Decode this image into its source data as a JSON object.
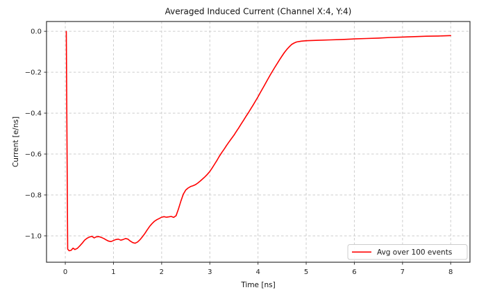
{
  "figure": {
    "title": "Averaged Induced Current (Channel X:4, Y:4)",
    "xlabel": "Time [ns]",
    "ylabel": "Current [e/ns]"
  },
  "legend": {
    "label": "Avg over 100 events",
    "position": "lower right"
  },
  "colors": {
    "line": "#ff0000",
    "grid": "#cdcdcd",
    "spine": "#333333",
    "text": "#111111",
    "legend_border": "#cccccc",
    "background": "#ffffff"
  },
  "chart_data": {
    "type": "line",
    "title": "Averaged Induced Current (Channel X:4, Y:4)",
    "xlabel": "Time [ns]",
    "ylabel": "Current [e/ns]",
    "xlim": [
      -0.39,
      8.4
    ],
    "ylim": [
      -1.129,
      0.048
    ],
    "xticks": [
      0,
      1,
      2,
      3,
      4,
      5,
      6,
      7,
      8
    ],
    "yticks": [
      0.0,
      -0.2,
      -0.4,
      -0.6,
      -0.8,
      -1.0
    ],
    "grid": "dashed",
    "legend_position": "lower right",
    "series": [
      {
        "name": "Avg over 100 events",
        "color": "#ff0000",
        "points": [
          [
            0.02,
            0.0
          ],
          [
            0.05,
            -1.065
          ],
          [
            0.08,
            -1.073
          ],
          [
            0.12,
            -1.071
          ],
          [
            0.16,
            -1.06
          ],
          [
            0.2,
            -1.067
          ],
          [
            0.25,
            -1.061
          ],
          [
            0.3,
            -1.049
          ],
          [
            0.35,
            -1.036
          ],
          [
            0.4,
            -1.021
          ],
          [
            0.45,
            -1.012
          ],
          [
            0.5,
            -1.006
          ],
          [
            0.55,
            -1.002
          ],
          [
            0.6,
            -1.01
          ],
          [
            0.64,
            -1.005
          ],
          [
            0.7,
            -1.004
          ],
          [
            0.75,
            -1.008
          ],
          [
            0.8,
            -1.013
          ],
          [
            0.85,
            -1.02
          ],
          [
            0.9,
            -1.026
          ],
          [
            0.95,
            -1.028
          ],
          [
            1.0,
            -1.023
          ],
          [
            1.05,
            -1.018
          ],
          [
            1.1,
            -1.016
          ],
          [
            1.15,
            -1.021
          ],
          [
            1.2,
            -1.018
          ],
          [
            1.25,
            -1.013
          ],
          [
            1.3,
            -1.016
          ],
          [
            1.35,
            -1.026
          ],
          [
            1.4,
            -1.033
          ],
          [
            1.45,
            -1.036
          ],
          [
            1.5,
            -1.03
          ],
          [
            1.55,
            -1.019
          ],
          [
            1.6,
            -1.005
          ],
          [
            1.65,
            -0.989
          ],
          [
            1.7,
            -0.971
          ],
          [
            1.75,
            -0.954
          ],
          [
            1.8,
            -0.94
          ],
          [
            1.85,
            -0.929
          ],
          [
            1.9,
            -0.921
          ],
          [
            1.95,
            -0.915
          ],
          [
            2.0,
            -0.909
          ],
          [
            2.05,
            -0.906
          ],
          [
            2.1,
            -0.909
          ],
          [
            2.15,
            -0.907
          ],
          [
            2.2,
            -0.905
          ],
          [
            2.25,
            -0.91
          ],
          [
            2.3,
            -0.901
          ],
          [
            2.35,
            -0.868
          ],
          [
            2.4,
            -0.83
          ],
          [
            2.45,
            -0.796
          ],
          [
            2.5,
            -0.776
          ],
          [
            2.55,
            -0.766
          ],
          [
            2.6,
            -0.759
          ],
          [
            2.65,
            -0.755
          ],
          [
            2.7,
            -0.75
          ],
          [
            2.75,
            -0.742
          ],
          [
            2.8,
            -0.732
          ],
          [
            2.85,
            -0.722
          ],
          [
            2.9,
            -0.711
          ],
          [
            2.95,
            -0.699
          ],
          [
            3.0,
            -0.685
          ],
          [
            3.05,
            -0.668
          ],
          [
            3.1,
            -0.649
          ],
          [
            3.15,
            -0.63
          ],
          [
            3.2,
            -0.61
          ],
          [
            3.25,
            -0.592
          ],
          [
            3.3,
            -0.575
          ],
          [
            3.35,
            -0.557
          ],
          [
            3.4,
            -0.54
          ],
          [
            3.45,
            -0.524
          ],
          [
            3.5,
            -0.508
          ],
          [
            3.55,
            -0.49
          ],
          [
            3.6,
            -0.472
          ],
          [
            3.65,
            -0.453
          ],
          [
            3.7,
            -0.435
          ],
          [
            3.75,
            -0.416
          ],
          [
            3.8,
            -0.398
          ],
          [
            3.85,
            -0.379
          ],
          [
            3.9,
            -0.36
          ],
          [
            3.95,
            -0.34
          ],
          [
            4.0,
            -0.32
          ],
          [
            4.05,
            -0.299
          ],
          [
            4.1,
            -0.278
          ],
          [
            4.15,
            -0.257
          ],
          [
            4.2,
            -0.236
          ],
          [
            4.25,
            -0.215
          ],
          [
            4.3,
            -0.195
          ],
          [
            4.35,
            -0.176
          ],
          [
            4.4,
            -0.157
          ],
          [
            4.45,
            -0.138
          ],
          [
            4.5,
            -0.12
          ],
          [
            4.55,
            -0.103
          ],
          [
            4.6,
            -0.088
          ],
          [
            4.65,
            -0.075
          ],
          [
            4.7,
            -0.064
          ],
          [
            4.75,
            -0.057
          ],
          [
            4.8,
            -0.052
          ],
          [
            4.9,
            -0.048
          ],
          [
            5.0,
            -0.046
          ],
          [
            5.25,
            -0.044
          ],
          [
            5.5,
            -0.042
          ],
          [
            5.75,
            -0.04
          ],
          [
            6.0,
            -0.037
          ],
          [
            6.25,
            -0.035
          ],
          [
            6.5,
            -0.033
          ],
          [
            6.75,
            -0.03
          ],
          [
            7.0,
            -0.028
          ],
          [
            7.25,
            -0.026
          ],
          [
            7.5,
            -0.024
          ],
          [
            7.75,
            -0.023
          ],
          [
            8.0,
            -0.021
          ]
        ]
      }
    ]
  }
}
